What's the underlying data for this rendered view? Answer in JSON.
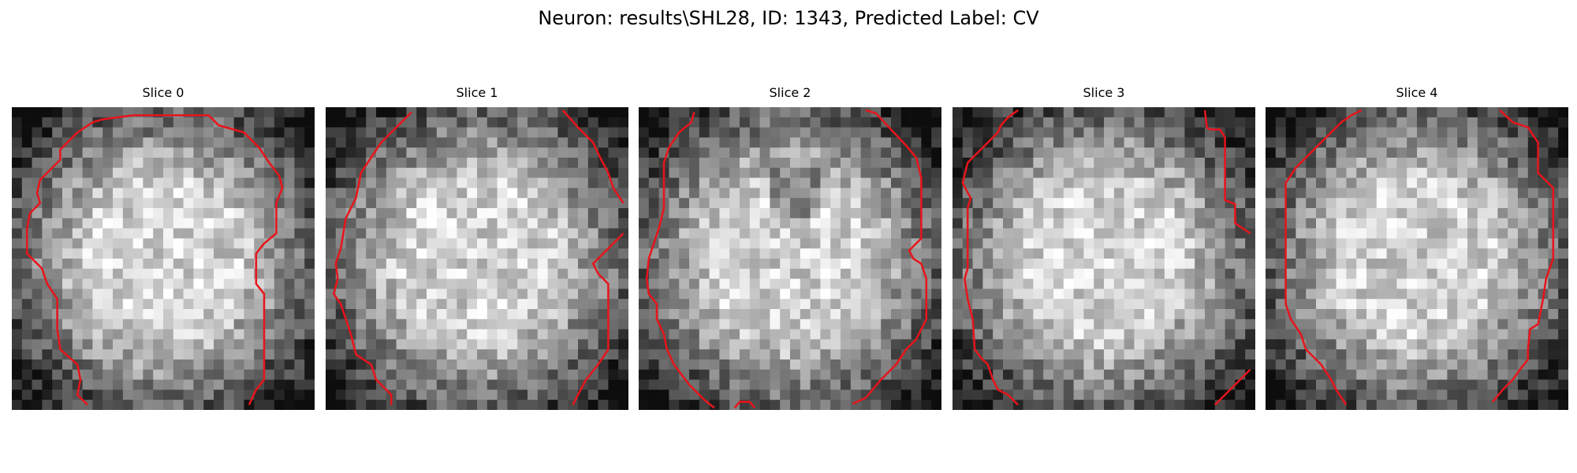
{
  "figure": {
    "title": "Neuron: results\\SHL28, ID: 1343, Predicted Label: CV"
  },
  "overlay_color": "#e8141b",
  "panels": [
    {
      "title": "Slice 0",
      "image": "grayscale neuron patch with red contour outline",
      "seed": 11
    },
    {
      "title": "Slice 1",
      "image": "grayscale neuron patch with red contour outline",
      "seed": 23
    },
    {
      "title": "Slice 2",
      "image": "grayscale neuron patch with red contour outline",
      "seed": 37
    },
    {
      "title": "Slice 3",
      "image": "grayscale neuron patch with red contour outline",
      "seed": 51
    },
    {
      "title": "Slice 4",
      "image": "grayscale neuron patch with red contour outline",
      "seed": 67
    }
  ]
}
